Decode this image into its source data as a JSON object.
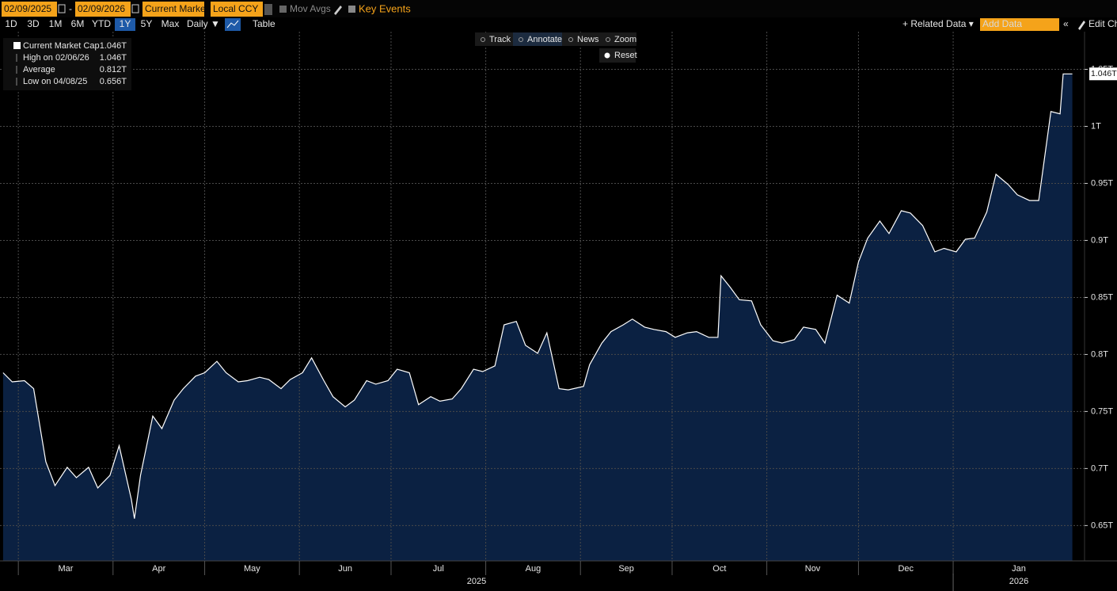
{
  "toolbar": {
    "start_date": "02/09/2025",
    "date_separator": "-",
    "end_date": "02/09/2026",
    "field": "Current Marke",
    "currency": "Local CCY",
    "mov_avgs": "Mov Avgs",
    "key_events": "Key Events",
    "periods": [
      "1D",
      "3D",
      "1M",
      "6M",
      "YTD",
      "1Y",
      "5Y",
      "Max"
    ],
    "selected_period": "1Y",
    "frequency": "Daily ▼",
    "table": "Table",
    "related_data": "+ Related Data ▾",
    "add_data": "Add Data",
    "collapse": "«",
    "edit": "Edit Ch"
  },
  "chart_tools": [
    "Track",
    "Annotate",
    "News",
    "Zoom"
  ],
  "reset": "Reset",
  "chart_data": {
    "type": "area",
    "legend": [
      {
        "label": "Current Market Cap",
        "value": "1.046T"
      },
      {
        "label": "High on 02/06/26",
        "value": "1.046T"
      },
      {
        "label": "Average",
        "value": "0.812T"
      },
      {
        "label": "Low on 04/08/25",
        "value": "0.656T"
      }
    ],
    "x": [
      "2025-02-24",
      "2025-02-27",
      "2025-03-03",
      "2025-03-06",
      "2025-03-10",
      "2025-03-13",
      "2025-03-17",
      "2025-03-20",
      "2025-03-24",
      "2025-03-27",
      "2025-03-31",
      "2025-04-03",
      "2025-04-07",
      "2025-04-08",
      "2025-04-10",
      "2025-04-14",
      "2025-04-17",
      "2025-04-21",
      "2025-04-24",
      "2025-04-28",
      "2025-05-01",
      "2025-05-05",
      "2025-05-08",
      "2025-05-12",
      "2025-05-15",
      "2025-05-19",
      "2025-05-22",
      "2025-05-26",
      "2025-05-29",
      "2025-06-02",
      "2025-06-05",
      "2025-06-09",
      "2025-06-12",
      "2025-06-16",
      "2025-06-19",
      "2025-06-23",
      "2025-06-26",
      "2025-06-30",
      "2025-07-03",
      "2025-07-07",
      "2025-07-10",
      "2025-07-14",
      "2025-07-17",
      "2025-07-21",
      "2025-07-24",
      "2025-07-28",
      "2025-07-31",
      "2025-08-04",
      "2025-08-07",
      "2025-08-11",
      "2025-08-14",
      "2025-08-18",
      "2025-08-21",
      "2025-08-25",
      "2025-08-28",
      "2025-09-02",
      "2025-09-04",
      "2025-09-08",
      "2025-09-11",
      "2025-09-15",
      "2025-09-18",
      "2025-09-22",
      "2025-09-25",
      "2025-09-29",
      "2025-10-02",
      "2025-10-06",
      "2025-10-09",
      "2025-10-13",
      "2025-10-16",
      "2025-10-17",
      "2025-10-20",
      "2025-10-23",
      "2025-10-27",
      "2025-10-30",
      "2025-11-03",
      "2025-11-06",
      "2025-11-10",
      "2025-11-13",
      "2025-11-17",
      "2025-11-20",
      "2025-11-24",
      "2025-11-28",
      "2025-12-01",
      "2025-12-04",
      "2025-12-08",
      "2025-12-11",
      "2025-12-15",
      "2025-12-18",
      "2025-12-22",
      "2025-12-26",
      "2025-12-29",
      "2026-01-02",
      "2026-01-05",
      "2026-01-08",
      "2026-01-12",
      "2026-01-15",
      "2026-01-19",
      "2026-01-22",
      "2026-01-26",
      "2026-01-29",
      "2026-02-02",
      "2026-02-05",
      "2026-02-06",
      "2026-02-09"
    ],
    "series": [
      {
        "name": "Current Market Cap",
        "color": "#ffffff",
        "fill": "#0b2142",
        "last_label": "1.046T",
        "values": [
          0.784,
          0.776,
          0.777,
          0.77,
          0.706,
          0.685,
          0.701,
          0.692,
          0.701,
          0.683,
          0.694,
          0.72,
          0.673,
          0.656,
          0.694,
          0.746,
          0.735,
          0.76,
          0.77,
          0.781,
          0.784,
          0.794,
          0.784,
          0.776,
          0.777,
          0.78,
          0.778,
          0.77,
          0.778,
          0.784,
          0.797,
          0.777,
          0.763,
          0.754,
          0.76,
          0.777,
          0.774,
          0.777,
          0.787,
          0.784,
          0.756,
          0.763,
          0.759,
          0.761,
          0.77,
          0.787,
          0.785,
          0.79,
          0.826,
          0.829,
          0.808,
          0.801,
          0.819,
          0.77,
          0.769,
          0.772,
          0.791,
          0.81,
          0.82,
          0.826,
          0.831,
          0.824,
          0.822,
          0.82,
          0.815,
          0.819,
          0.82,
          0.815,
          0.815,
          0.869,
          0.859,
          0.848,
          0.847,
          0.826,
          0.812,
          0.81,
          0.813,
          0.824,
          0.822,
          0.81,
          0.852,
          0.845,
          0.881,
          0.902,
          0.917,
          0.906,
          0.926,
          0.924,
          0.913,
          0.89,
          0.893,
          0.89,
          0.901,
          0.902,
          0.925,
          0.958,
          0.949,
          0.94,
          0.935,
          0.935,
          1.013,
          1.011,
          1.046,
          1.046
        ]
      }
    ],
    "xlim": [
      "2025-02-23",
      "2026-02-13"
    ],
    "xticks": [
      {
        "value": "2025-03-01",
        "label": "Mar"
      },
      {
        "value": "2025-04-01",
        "label": "Apr"
      },
      {
        "value": "2025-05-01",
        "label": "May"
      },
      {
        "value": "2025-06-01",
        "label": "Jun"
      },
      {
        "value": "2025-07-01",
        "label": "Jul"
      },
      {
        "value": "2025-08-01",
        "label": "Aug"
      },
      {
        "value": "2025-09-01",
        "label": "Sep"
      },
      {
        "value": "2025-10-01",
        "label": "Oct"
      },
      {
        "value": "2025-11-01",
        "label": "Nov"
      },
      {
        "value": "2025-12-01",
        "label": "Dec"
      },
      {
        "value": "2026-01-01",
        "label": "Jan"
      }
    ],
    "years": [
      {
        "value": "2025-01-01",
        "label": "2025"
      },
      {
        "value": "2026-01-01",
        "label": "2026"
      }
    ],
    "ylim": [
      0.619,
      1.083
    ],
    "yticks": [
      {
        "value": 0.65,
        "label": "0.65T"
      },
      {
        "value": 0.7,
        "label": "0.7T"
      },
      {
        "value": 0.75,
        "label": "0.75T"
      },
      {
        "value": 0.8,
        "label": "0.8T"
      },
      {
        "value": 0.85,
        "label": "0.85T"
      },
      {
        "value": 0.9,
        "label": "0.9T"
      },
      {
        "value": 0.95,
        "label": "0.95T"
      },
      {
        "value": 1,
        "label": "1T"
      },
      {
        "value": 1.05,
        "label": "1.05T"
      }
    ],
    "grid": true
  }
}
